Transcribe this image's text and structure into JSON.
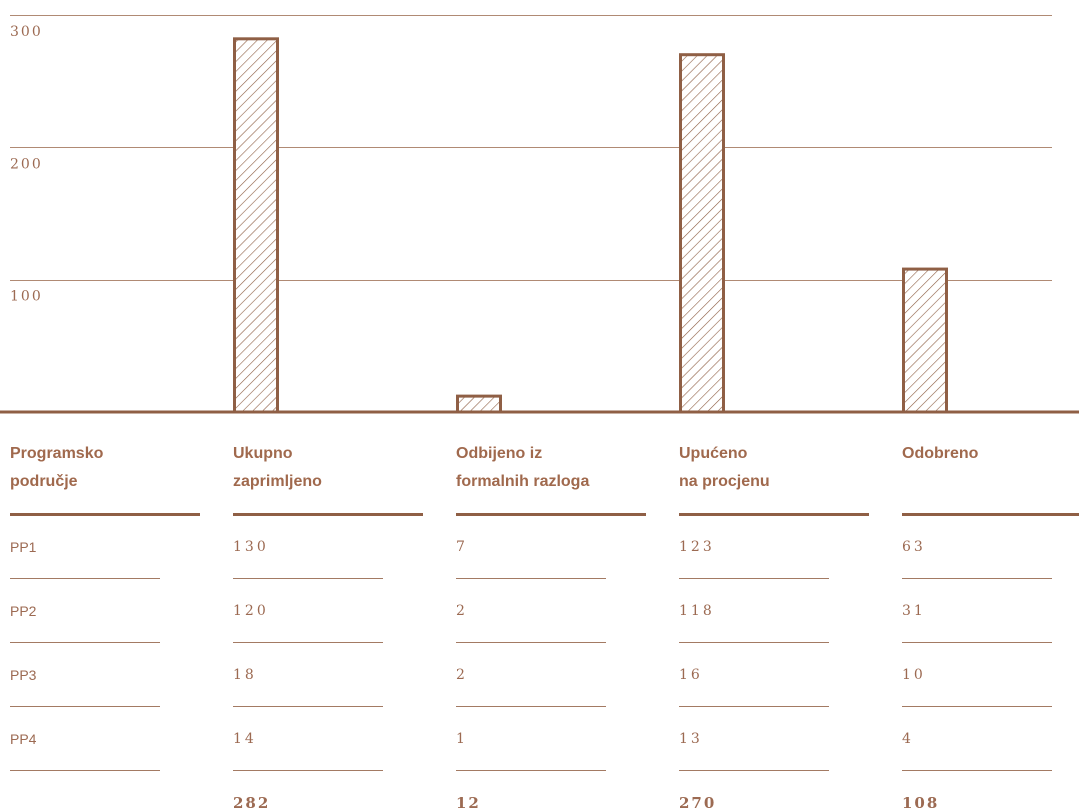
{
  "colors": {
    "accent": "#8f5f45",
    "text": "#9c6a52",
    "grid": "#b08a74"
  },
  "chart_data": {
    "type": "bar",
    "categories": [
      "Ukupno zaprimljeno",
      "Odbijeno iz formalnih razloga",
      "Upućeno na procjenu",
      "Odobreno"
    ],
    "values": [
      282,
      12,
      270,
      108
    ],
    "yticks": [
      "100",
      "200",
      "300"
    ],
    "ylim": [
      0,
      300
    ],
    "grid": true,
    "bar_style": "hatched"
  },
  "table": {
    "headers": [
      {
        "line1": "Programsko",
        "line2": "područje"
      },
      {
        "line1": "Ukupno",
        "line2": "zaprimljeno"
      },
      {
        "line1": "Odbijeno iz",
        "line2": "formalnih razloga"
      },
      {
        "line1": "Upućeno",
        "line2": "na procjenu"
      },
      {
        "line1": "Odobreno",
        "line2": ""
      }
    ],
    "rows": [
      [
        "PP1",
        "130",
        "7",
        "123",
        "63"
      ],
      [
        "PP2",
        "120",
        "2",
        "118",
        "31"
      ],
      [
        "PP3",
        "18",
        "2",
        "16",
        "10"
      ],
      [
        "PP4",
        "14",
        "1",
        "13",
        "4"
      ]
    ],
    "totals": [
      "282",
      "12",
      "270",
      "108"
    ]
  }
}
